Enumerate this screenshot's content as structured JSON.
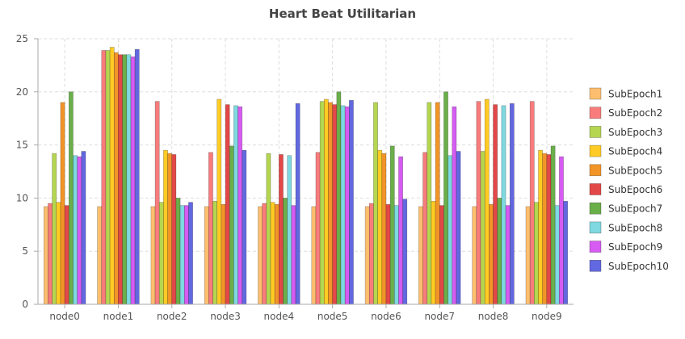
{
  "chart_data": {
    "type": "bar",
    "title": "Heart Beat Utilitarian",
    "xlabel": "",
    "ylabel": "",
    "ylim": [
      0,
      25
    ],
    "yticks": [
      0,
      5,
      10,
      15,
      20,
      25
    ],
    "grid": true,
    "legend_position": "right",
    "categories": [
      "node0",
      "node1",
      "node2",
      "node3",
      "node4",
      "node5",
      "node6",
      "node7",
      "node8",
      "node9"
    ],
    "series": [
      {
        "name": "SubEpoch1",
        "color": "#FDBF6F",
        "values": [
          9.2,
          9.2,
          9.2,
          9.2,
          9.2,
          9.2,
          9.2,
          9.2,
          9.2,
          9.2
        ]
      },
      {
        "name": "SubEpoch2",
        "color": "#F97C7C",
        "values": [
          9.5,
          23.9,
          19.1,
          14.3,
          9.5,
          14.3,
          9.5,
          14.3,
          19.1,
          19.1
        ]
      },
      {
        "name": "SubEpoch3",
        "color": "#B5D651",
        "values": [
          14.2,
          23.9,
          9.6,
          9.7,
          14.2,
          19.1,
          19.0,
          19.0,
          14.4,
          9.6
        ]
      },
      {
        "name": "SubEpoch4",
        "color": "#FFCB24",
        "values": [
          9.6,
          24.2,
          14.5,
          19.3,
          9.6,
          19.3,
          14.5,
          9.7,
          19.3,
          14.5
        ]
      },
      {
        "name": "SubEpoch5",
        "color": "#F29528",
        "values": [
          19.0,
          23.7,
          14.2,
          9.4,
          9.4,
          19.0,
          14.2,
          19.0,
          9.4,
          14.2
        ]
      },
      {
        "name": "SubEpoch6",
        "color": "#E34848",
        "values": [
          9.3,
          23.5,
          14.1,
          18.8,
          14.1,
          18.8,
          9.4,
          9.3,
          18.8,
          14.1
        ]
      },
      {
        "name": "SubEpoch7",
        "color": "#6AAF4A",
        "values": [
          20.0,
          23.5,
          10.0,
          14.9,
          10.0,
          20.0,
          14.9,
          20.0,
          10.0,
          14.9
        ]
      },
      {
        "name": "SubEpoch8",
        "color": "#7ED9E0",
        "values": [
          14.0,
          23.5,
          9.3,
          18.7,
          14.0,
          18.7,
          9.3,
          14.0,
          18.7,
          9.3
        ]
      },
      {
        "name": "SubEpoch9",
        "color": "#D65BF2",
        "values": [
          13.9,
          23.3,
          9.3,
          18.6,
          9.3,
          18.6,
          13.9,
          18.6,
          9.3,
          13.9
        ]
      },
      {
        "name": "SubEpoch10",
        "color": "#6268E0",
        "values": [
          14.4,
          24.0,
          9.6,
          14.5,
          18.9,
          19.2,
          9.9,
          14.4,
          18.9,
          9.7
        ]
      }
    ]
  }
}
